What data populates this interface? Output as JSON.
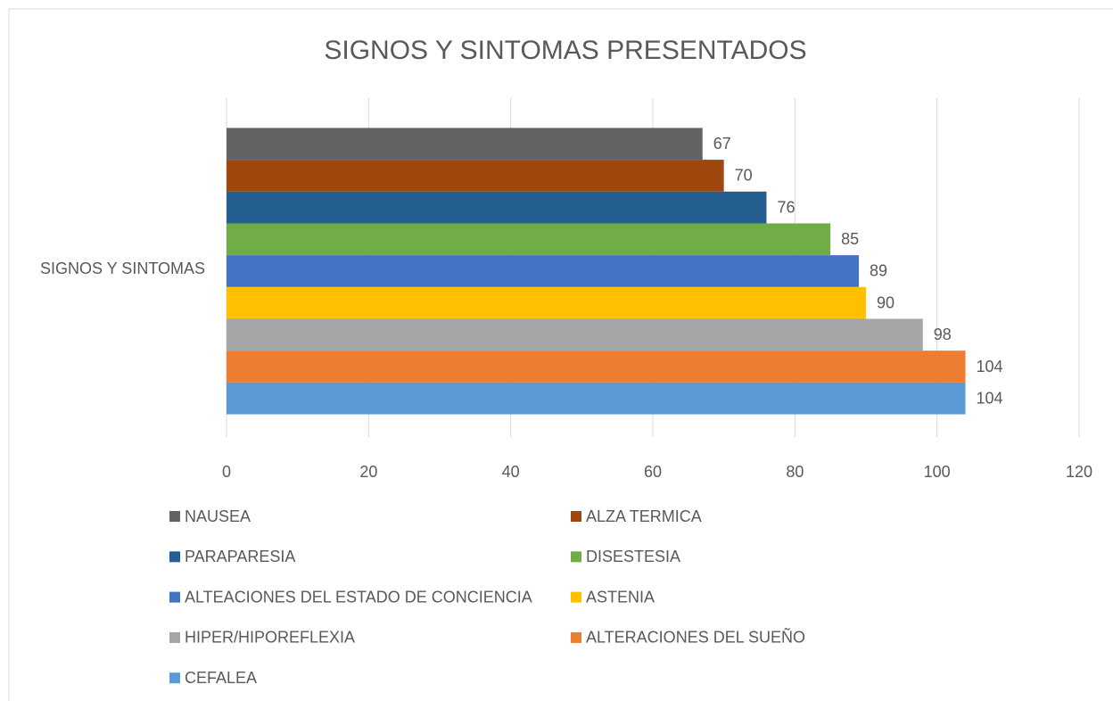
{
  "chart_data": {
    "type": "bar",
    "orientation": "horizontal",
    "title": "SIGNOS Y SINTOMAS PRESENTADOS",
    "categories": [
      "SIGNOS Y SINTOMAS"
    ],
    "series": [
      {
        "name": "NAUSEA",
        "color": "#636363",
        "values": [
          67
        ]
      },
      {
        "name": "ALZA TERMICA",
        "color": "#9e480e",
        "values": [
          70
        ]
      },
      {
        "name": "PARAPARESIA",
        "color": "#255e91",
        "values": [
          76
        ]
      },
      {
        "name": "DISESTESIA",
        "color": "#70ad47",
        "values": [
          85
        ]
      },
      {
        "name": "ALTEACIONES DEL ESTADO DE CONCIENCIA",
        "color": "#4472c4",
        "values": [
          89
        ]
      },
      {
        "name": "ASTENIA",
        "color": "#ffc000",
        "values": [
          90
        ]
      },
      {
        "name": "HIPER/HIPOREFLEXIA",
        "color": "#a5a5a5",
        "values": [
          98
        ]
      },
      {
        "name": "ALTERACIONES DEL SUEÑO",
        "color": "#ed7d31",
        "values": [
          104
        ]
      },
      {
        "name": "CEFALEA",
        "color": "#5b9bd5",
        "values": [
          104
        ]
      }
    ],
    "xlim": [
      0,
      120
    ],
    "xticks": [
      0,
      20,
      40,
      60,
      80,
      100,
      120
    ],
    "grid": true,
    "legend": "bottom"
  }
}
